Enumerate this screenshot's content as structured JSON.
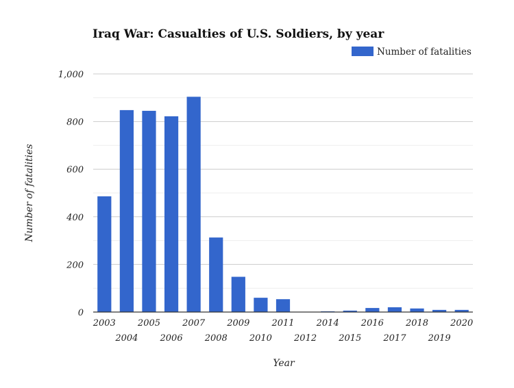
{
  "chart_data": {
    "type": "bar",
    "title": "Iraq War: Casualties of U.S. Soldiers, by year",
    "xlabel": "Year",
    "ylabel": "Number of fatalities",
    "legend": {
      "position": "top-right",
      "entries": [
        "Number of fatalities"
      ]
    },
    "categories": [
      "2003",
      "2004",
      "2005",
      "2006",
      "2007",
      "2008",
      "2009",
      "2010",
      "2011",
      "2012",
      "2014",
      "2015",
      "2016",
      "2017",
      "2018",
      "2019",
      "2020"
    ],
    "series": [
      {
        "name": "Number of fatalities",
        "color": "#3366cc",
        "values": [
          486,
          848,
          845,
          822,
          904,
          313,
          148,
          60,
          54,
          1,
          3,
          6,
          17,
          20,
          15,
          9,
          9
        ]
      }
    ],
    "ylim": [
      0,
      1000
    ],
    "yticks": [
      0,
      200,
      400,
      600,
      800,
      1000
    ],
    "ytick_labels": [
      "0",
      "200",
      "400",
      "600",
      "800",
      "1,000"
    ],
    "grid": true
  }
}
